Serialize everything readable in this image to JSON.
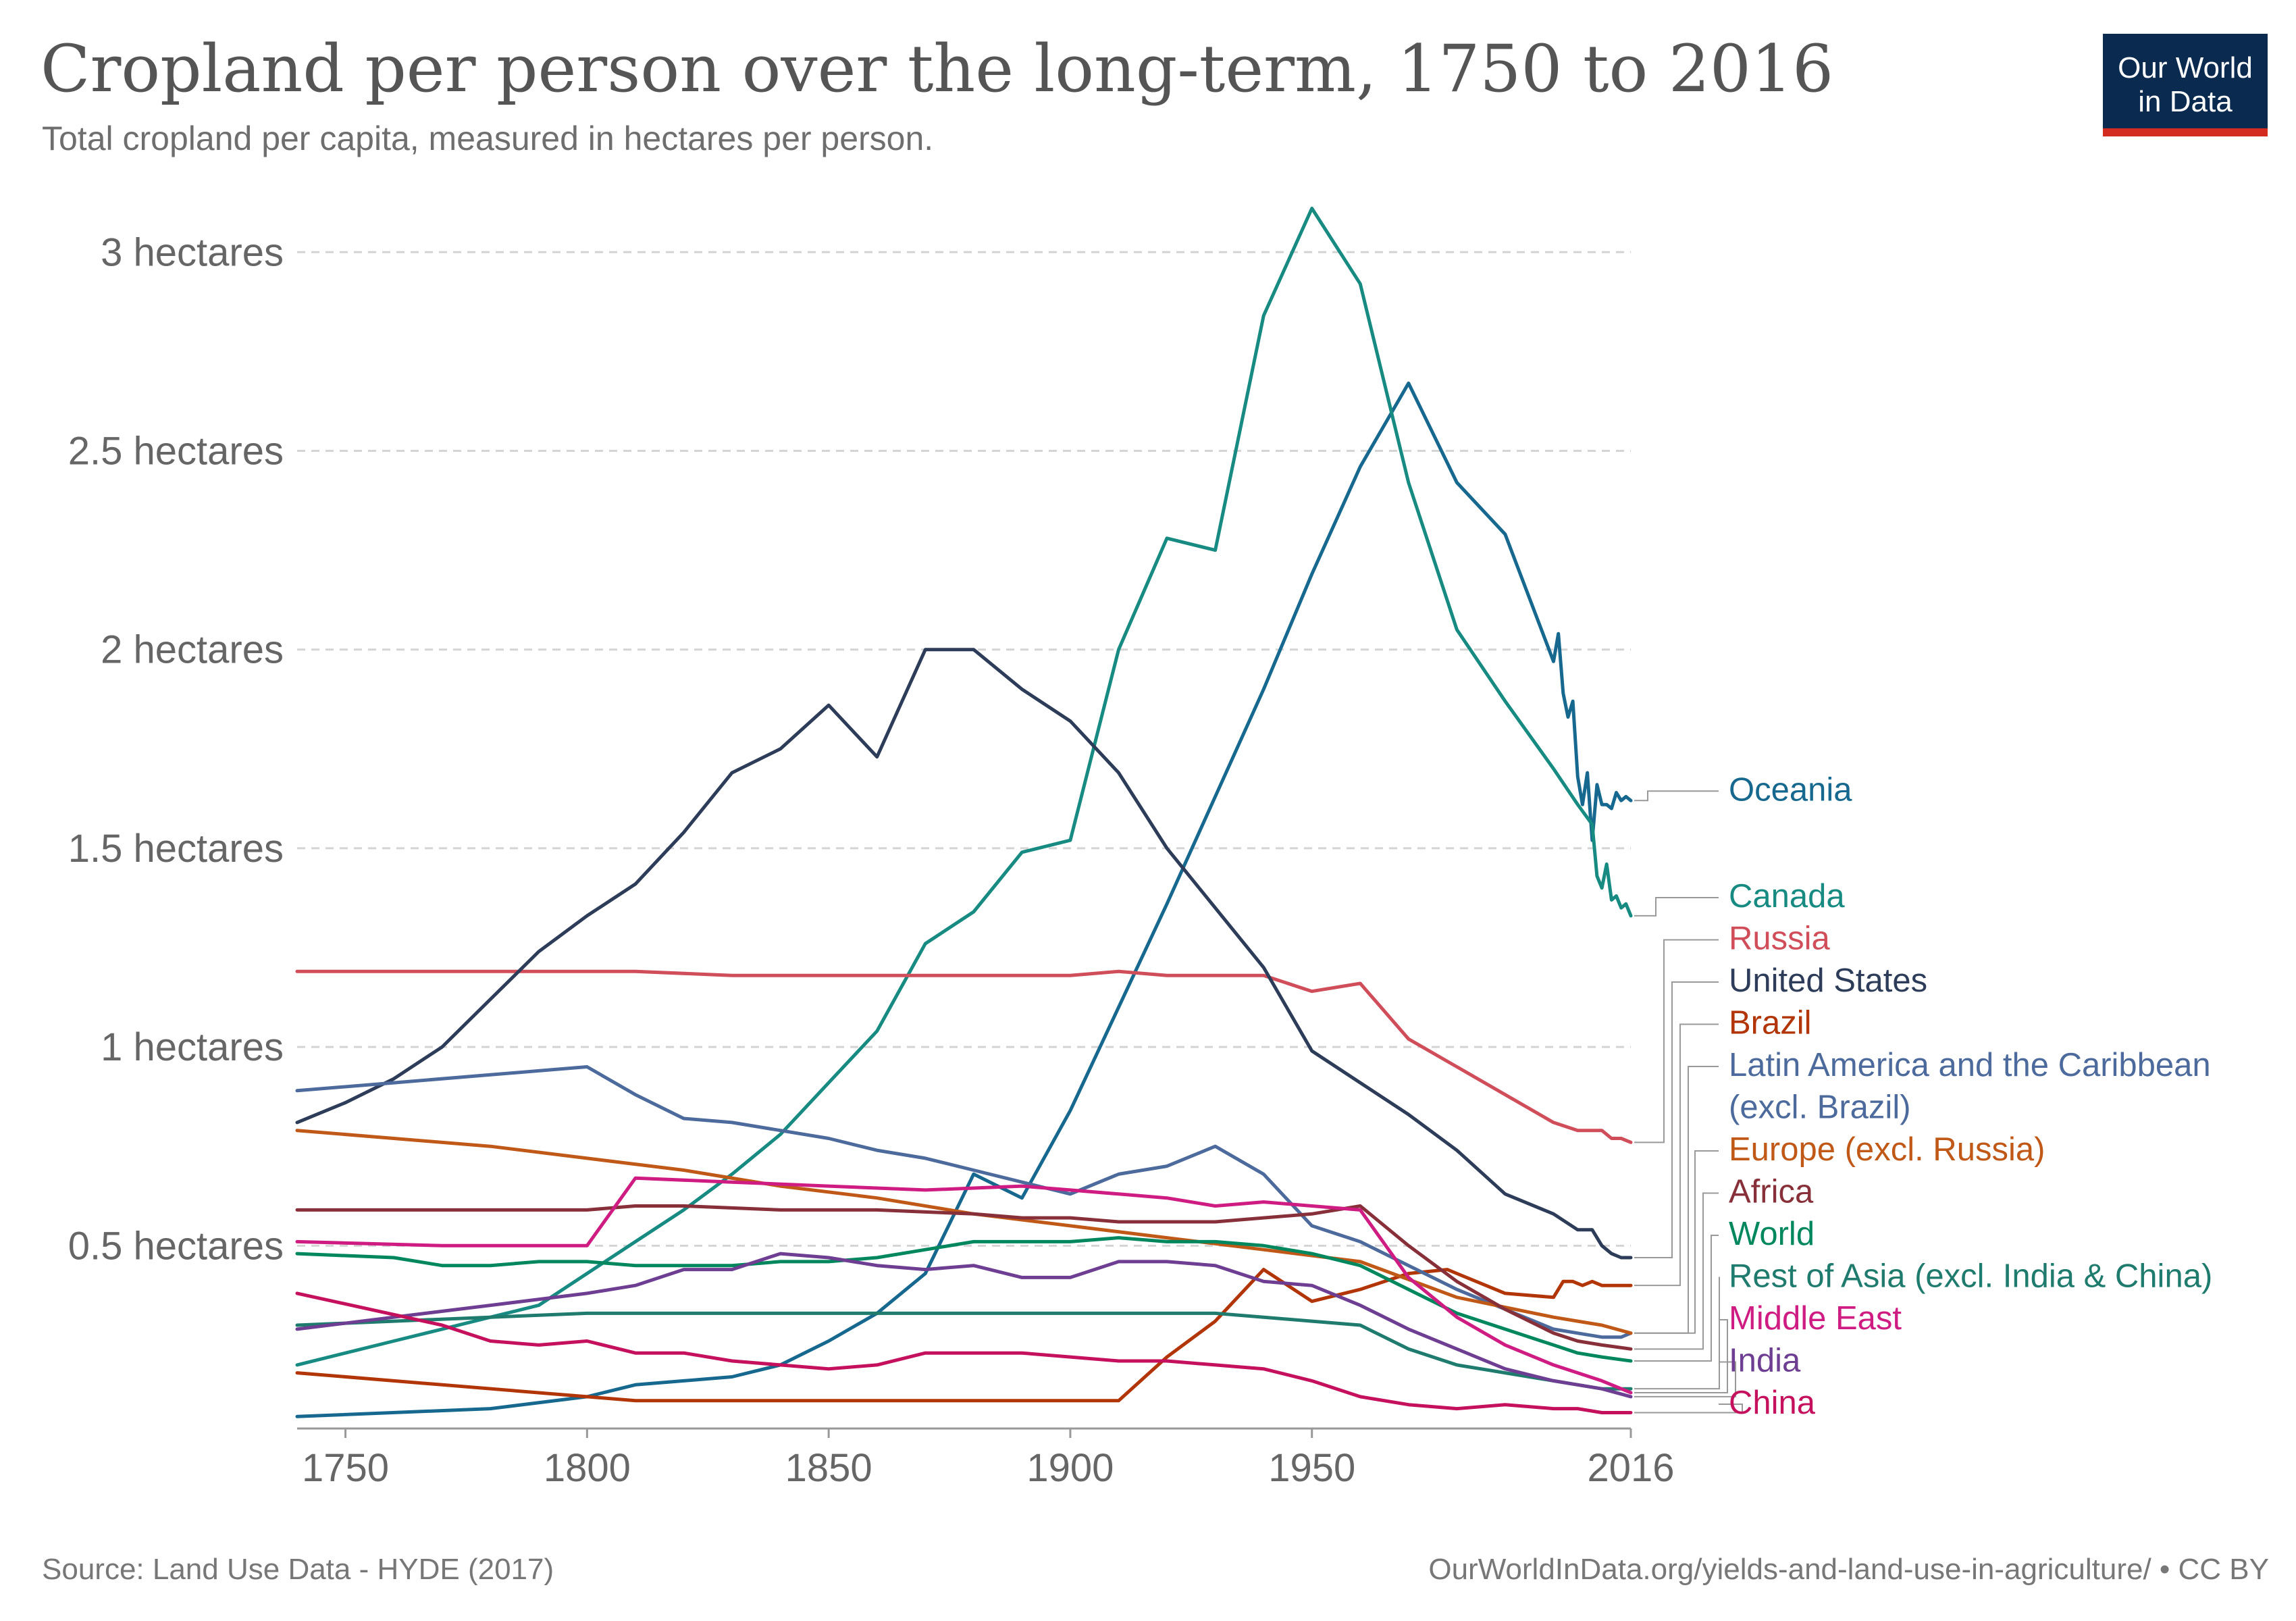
{
  "title": "Cropland per person over the long-term, 1750 to 2016",
  "subtitle": "Total cropland per capita, measured in hectares per person.",
  "logo": {
    "line1": "Our World",
    "line2": "in Data",
    "bg_color": "#0b2a4f",
    "accent_color": "#d42b21"
  },
  "source": "Source: Land Use Data - HYDE (2017)",
  "url": "OurWorldInData.org/yields-and-land-use-in-agriculture/ • CC BY",
  "chart_data": {
    "type": "line",
    "x_ticks": [
      "1750",
      "1800",
      "1850",
      "1900",
      "1950",
      "2016"
    ],
    "y_ticks": [
      "0.5 hectares",
      "1 hectares",
      "1.5 hectares",
      "2 hectares",
      "2.5 hectares",
      "3 hectares"
    ],
    "xlim": [
      1740,
      2016
    ],
    "ylim": [
      0.04,
      3.15
    ],
    "grid": "horizontal dashed",
    "legend": "right, line-end labels",
    "series": [
      {
        "name": "Oceania",
        "color": "#17688f",
        "x": [
          1740,
          1780,
          1800,
          1810,
          1820,
          1830,
          1840,
          1850,
          1860,
          1870,
          1880,
          1890,
          1900,
          1910,
          1920,
          1930,
          1940,
          1950,
          1960,
          1970,
          1980,
          1990,
          2000,
          2001,
          2002,
          2003,
          2004,
          2005,
          2006,
          2007,
          2008,
          2009,
          2010,
          2011,
          2012,
          2013,
          2014,
          2015,
          2016
        ],
        "y": [
          0.07,
          0.09,
          0.12,
          0.15,
          0.16,
          0.17,
          0.2,
          0.26,
          0.33,
          0.43,
          0.68,
          0.62,
          0.84,
          1.1,
          1.36,
          1.63,
          1.9,
          2.19,
          2.46,
          2.67,
          2.42,
          2.29,
          1.97,
          2.04,
          1.89,
          1.83,
          1.87,
          1.68,
          1.61,
          1.69,
          1.52,
          1.66,
          1.61,
          1.61,
          1.6,
          1.64,
          1.62,
          1.63,
          1.62
        ]
      },
      {
        "name": "Canada",
        "color": "#178a82",
        "x": [
          1740,
          1750,
          1760,
          1770,
          1780,
          1790,
          1800,
          1810,
          1820,
          1830,
          1840,
          1850,
          1860,
          1870,
          1880,
          1890,
          1900,
          1910,
          1920,
          1930,
          1940,
          1950,
          1960,
          1970,
          1980,
          1990,
          2000,
          2005,
          2008,
          2009,
          2010,
          2011,
          2012,
          2013,
          2014,
          2015,
          2016
        ],
        "y": [
          0.2,
          0.23,
          0.26,
          0.29,
          0.32,
          0.35,
          0.43,
          0.51,
          0.59,
          0.68,
          0.78,
          0.91,
          1.04,
          1.26,
          1.34,
          1.49,
          1.52,
          2.0,
          2.28,
          2.25,
          2.84,
          3.11,
          2.92,
          2.42,
          2.05,
          1.87,
          1.7,
          1.61,
          1.56,
          1.43,
          1.4,
          1.46,
          1.37,
          1.38,
          1.35,
          1.36,
          1.33
        ]
      },
      {
        "name": "Russia",
        "color": "#d04d5a",
        "x": [
          1740,
          1800,
          1810,
          1830,
          1850,
          1870,
          1900,
          1910,
          1920,
          1940,
          1950,
          1960,
          1970,
          1980,
          1990,
          2000,
          2005,
          2010,
          2012,
          2014,
          2016
        ],
        "y": [
          1.19,
          1.19,
          1.19,
          1.18,
          1.18,
          1.18,
          1.18,
          1.19,
          1.18,
          1.18,
          1.14,
          1.16,
          1.02,
          0.95,
          0.88,
          0.81,
          0.79,
          0.79,
          0.77,
          0.77,
          0.76
        ]
      },
      {
        "name": "United States",
        "color": "#2d3c59",
        "x": [
          1740,
          1750,
          1760,
          1770,
          1780,
          1790,
          1800,
          1810,
          1820,
          1830,
          1840,
          1850,
          1860,
          1870,
          1880,
          1890,
          1900,
          1910,
          1920,
          1930,
          1940,
          1950,
          1960,
          1970,
          1980,
          1990,
          2000,
          2005,
          2008,
          2010,
          2012,
          2014,
          2016
        ],
        "y": [
          0.81,
          0.86,
          0.92,
          1.0,
          1.12,
          1.24,
          1.33,
          1.41,
          1.54,
          1.69,
          1.75,
          1.86,
          1.73,
          2.0,
          2.0,
          1.9,
          1.82,
          1.69,
          1.5,
          1.35,
          1.2,
          0.99,
          0.91,
          0.83,
          0.74,
          0.63,
          0.58,
          0.54,
          0.54,
          0.5,
          0.48,
          0.47,
          0.47
        ]
      },
      {
        "name": "Brazil",
        "color": "#b13507",
        "x": [
          1740,
          1800,
          1810,
          1850,
          1900,
          1910,
          1920,
          1930,
          1940,
          1950,
          1960,
          1970,
          1978,
          1980,
          1990,
          2000,
          2002,
          2004,
          2006,
          2008,
          2010,
          2012,
          2014,
          2016
        ],
        "y": [
          0.18,
          0.12,
          0.11,
          0.11,
          0.11,
          0.11,
          0.22,
          0.31,
          0.44,
          0.36,
          0.39,
          0.43,
          0.44,
          0.43,
          0.38,
          0.37,
          0.41,
          0.41,
          0.4,
          0.41,
          0.4,
          0.4,
          0.4,
          0.4
        ]
      },
      {
        "name": "Latin America and the Caribbean (excl. Brazil)",
        "color": "#4c6a9c",
        "x": [
          1740,
          1760,
          1780,
          1790,
          1800,
          1810,
          1820,
          1830,
          1840,
          1850,
          1860,
          1870,
          1880,
          1890,
          1900,
          1910,
          1920,
          1930,
          1940,
          1950,
          1960,
          1970,
          1980,
          1990,
          2000,
          2005,
          2010,
          2012,
          2014,
          2016
        ],
        "y": [
          0.89,
          0.91,
          0.93,
          0.94,
          0.95,
          0.88,
          0.82,
          0.81,
          0.79,
          0.77,
          0.74,
          0.72,
          0.69,
          0.66,
          0.63,
          0.68,
          0.7,
          0.75,
          0.68,
          0.55,
          0.51,
          0.45,
          0.39,
          0.34,
          0.29,
          0.28,
          0.27,
          0.27,
          0.27,
          0.28
        ]
      },
      {
        "name": "Europe (excl. Russia)",
        "color": "#c05917",
        "x": [
          1740,
          1760,
          1780,
          1800,
          1820,
          1840,
          1860,
          1880,
          1900,
          1920,
          1940,
          1960,
          1980,
          2000,
          2005,
          2010,
          2016
        ],
        "y": [
          0.79,
          0.77,
          0.75,
          0.72,
          0.69,
          0.65,
          0.62,
          0.58,
          0.55,
          0.52,
          0.49,
          0.46,
          0.37,
          0.32,
          0.31,
          0.3,
          0.28
        ]
      },
      {
        "name": "Africa",
        "color": "#883039",
        "x": [
          1740,
          1780,
          1800,
          1810,
          1820,
          1840,
          1860,
          1880,
          1890,
          1900,
          1910,
          1920,
          1930,
          1940,
          1950,
          1960,
          1970,
          1980,
          1990,
          2000,
          2005,
          2010,
          2016
        ],
        "y": [
          0.59,
          0.59,
          0.59,
          0.6,
          0.6,
          0.59,
          0.59,
          0.58,
          0.57,
          0.57,
          0.56,
          0.56,
          0.56,
          0.57,
          0.58,
          0.6,
          0.5,
          0.41,
          0.34,
          0.28,
          0.26,
          0.25,
          0.24
        ]
      },
      {
        "name": "World",
        "color": "#00875e",
        "x": [
          1740,
          1760,
          1770,
          1780,
          1790,
          1800,
          1810,
          1820,
          1830,
          1840,
          1850,
          1860,
          1870,
          1880,
          1890,
          1900,
          1910,
          1920,
          1930,
          1940,
          1950,
          1960,
          1970,
          1980,
          1990,
          2000,
          2005,
          2010,
          2016
        ],
        "y": [
          0.48,
          0.47,
          0.45,
          0.45,
          0.46,
          0.46,
          0.45,
          0.45,
          0.45,
          0.46,
          0.46,
          0.47,
          0.49,
          0.51,
          0.51,
          0.51,
          0.52,
          0.51,
          0.51,
          0.5,
          0.48,
          0.45,
          0.39,
          0.33,
          0.29,
          0.25,
          0.23,
          0.22,
          0.21
        ]
      },
      {
        "name": "Rest of Asia (excl. India & China)",
        "color": "#1e7b6d",
        "x": [
          1740,
          1760,
          1780,
          1800,
          1820,
          1840,
          1860,
          1880,
          1900,
          1920,
          1930,
          1940,
          1950,
          1960,
          1970,
          1980,
          1990,
          2000,
          2010,
          2016
        ],
        "y": [
          0.3,
          0.31,
          0.32,
          0.33,
          0.33,
          0.33,
          0.33,
          0.33,
          0.33,
          0.33,
          0.33,
          0.32,
          0.31,
          0.3,
          0.24,
          0.2,
          0.18,
          0.16,
          0.14,
          0.14
        ]
      },
      {
        "name": "Middle East",
        "color": "#cf1c82",
        "x": [
          1740,
          1770,
          1780,
          1790,
          1800,
          1810,
          1830,
          1850,
          1870,
          1890,
          1900,
          1910,
          1920,
          1930,
          1940,
          1950,
          1960,
          1970,
          1980,
          1990,
          2000,
          2005,
          2010,
          2016
        ],
        "y": [
          0.51,
          0.5,
          0.5,
          0.5,
          0.5,
          0.67,
          0.66,
          0.65,
          0.64,
          0.65,
          0.64,
          0.63,
          0.62,
          0.6,
          0.61,
          0.6,
          0.59,
          0.42,
          0.32,
          0.25,
          0.2,
          0.18,
          0.16,
          0.13
        ]
      },
      {
        "name": "India",
        "color": "#6d3e91",
        "x": [
          1740,
          1760,
          1780,
          1800,
          1810,
          1820,
          1830,
          1840,
          1850,
          1860,
          1870,
          1880,
          1890,
          1900,
          1910,
          1920,
          1930,
          1940,
          1950,
          1960,
          1970,
          1980,
          1990,
          2000,
          2005,
          2010,
          2016
        ],
        "y": [
          0.29,
          0.32,
          0.35,
          0.38,
          0.4,
          0.44,
          0.44,
          0.48,
          0.47,
          0.45,
          0.44,
          0.45,
          0.42,
          0.42,
          0.46,
          0.46,
          0.45,
          0.41,
          0.4,
          0.35,
          0.29,
          0.24,
          0.19,
          0.16,
          0.15,
          0.14,
          0.12
        ]
      },
      {
        "name": "China",
        "color": "#c4105d",
        "x": [
          1740,
          1770,
          1780,
          1790,
          1800,
          1810,
          1820,
          1830,
          1840,
          1850,
          1860,
          1870,
          1880,
          1890,
          1900,
          1910,
          1920,
          1930,
          1940,
          1950,
          1960,
          1970,
          1980,
          1990,
          2000,
          2005,
          2010,
          2016
        ],
        "y": [
          0.38,
          0.3,
          0.26,
          0.25,
          0.26,
          0.23,
          0.23,
          0.21,
          0.2,
          0.19,
          0.2,
          0.23,
          0.23,
          0.23,
          0.22,
          0.21,
          0.21,
          0.2,
          0.19,
          0.16,
          0.12,
          0.1,
          0.09,
          0.1,
          0.09,
          0.09,
          0.08,
          0.08
        ]
      }
    ]
  }
}
